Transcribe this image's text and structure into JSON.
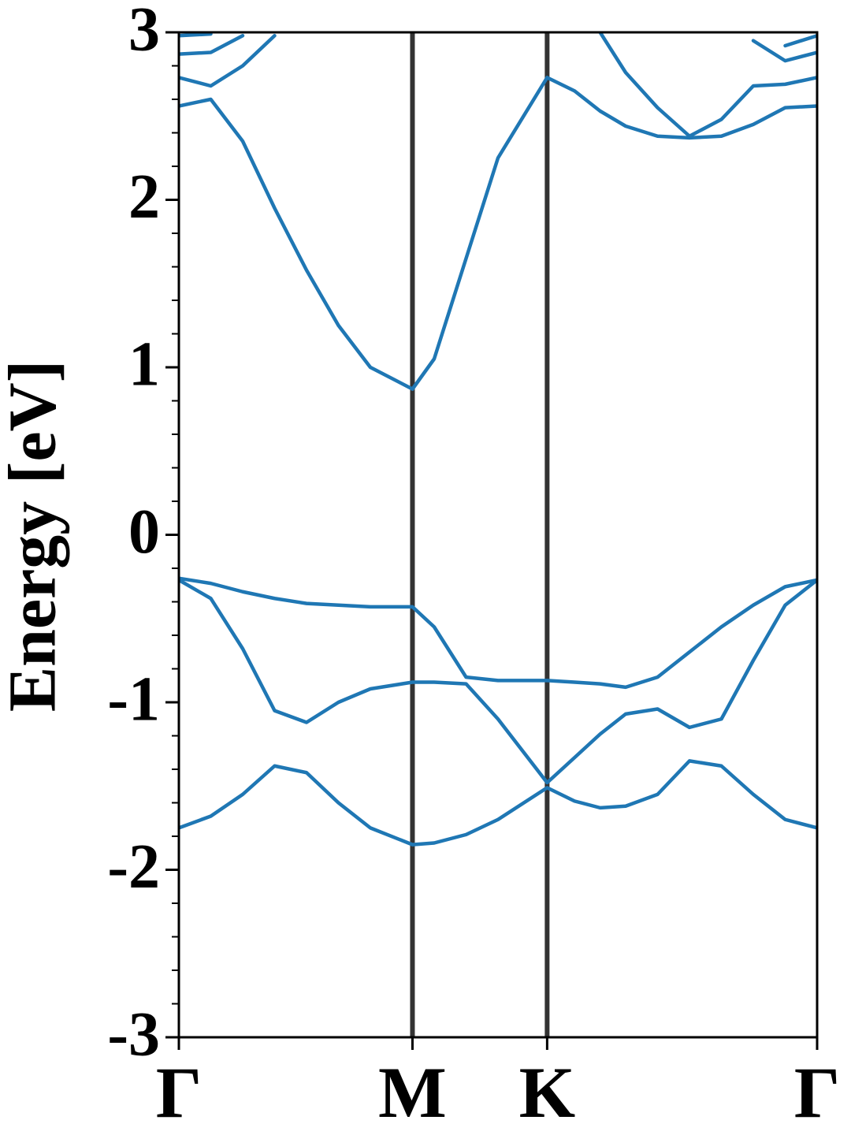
{
  "chart_data": {
    "type": "line",
    "ylabel": "Energy [eV]",
    "xlim": [
      0,
      1
    ],
    "xticks": [
      {
        "value": 0,
        "label": "Γ"
      },
      {
        "value": 0.366,
        "label": "M"
      },
      {
        "value": 0.577,
        "label": "K"
      },
      {
        "value": 1,
        "label": "Γ"
      }
    ],
    "ylim": [
      -3,
      3
    ],
    "yticks": [
      -3,
      -2,
      -1,
      0,
      1,
      2,
      3
    ],
    "yminorticks": [
      -2.8,
      -2.6,
      -2.4,
      -2.2,
      -1.8,
      -1.6,
      -1.4,
      -1.2,
      -0.8,
      -0.6,
      -0.4,
      -0.2,
      0.2,
      0.4,
      0.6,
      0.8,
      1.2,
      1.4,
      1.6,
      1.8,
      2.2,
      2.4,
      2.6,
      2.8
    ],
    "xgrid": true,
    "x": [
      0,
      0.05,
      0.1,
      0.15,
      0.2,
      0.25,
      0.3,
      0.366,
      0.4,
      0.45,
      0.5,
      0.577,
      0.62,
      0.66,
      0.7,
      0.75,
      0.8,
      0.85,
      0.9,
      0.95,
      1
    ],
    "series": [
      {
        "color": "#1f77b4",
        "values": [
          -1.75,
          -1.68,
          -1.55,
          -1.38,
          -1.42,
          -1.6,
          -1.75,
          -1.85,
          -1.84,
          -1.79,
          -1.7,
          -1.51,
          -1.59,
          -1.63,
          -1.62,
          -1.55,
          -1.35,
          -1.38,
          -1.55,
          -1.7,
          -1.75
        ]
      },
      {
        "color": "#1f77b4",
        "values": [
          -0.27,
          -0.38,
          -0.68,
          -1.05,
          -1.12,
          -1.0,
          -0.92,
          -0.88,
          -0.88,
          -0.89,
          -1.1,
          -1.48,
          -1.33,
          -1.19,
          -1.07,
          -1.04,
          -1.15,
          -1.1,
          -0.75,
          -0.42,
          -0.27
        ]
      },
      {
        "color": "#1f77b4",
        "values": [
          -0.26,
          -0.29,
          -0.34,
          -0.38,
          -0.41,
          -0.42,
          -0.43,
          -0.43,
          -0.55,
          -0.85,
          -0.87,
          -0.87,
          -0.88,
          -0.89,
          -0.91,
          -0.85,
          -0.7,
          -0.55,
          -0.42,
          -0.31,
          -0.27
        ]
      },
      {
        "color": "#1f77b4",
        "values": [
          2.56,
          2.6,
          2.35,
          1.95,
          1.58,
          1.25,
          1.0,
          0.87,
          1.05,
          1.65,
          2.25,
          2.73,
          2.65,
          2.53,
          2.44,
          2.38,
          2.37,
          2.38,
          2.45,
          2.55,
          2.56
        ]
      },
      {
        "color": "#1f77b4",
        "values": [
          2.73,
          2.68,
          2.8,
          2.98,
          null,
          null,
          null,
          null,
          null,
          null,
          null,
          null,
          null,
          3.0,
          2.76,
          2.55,
          2.38,
          2.48,
          2.68,
          2.69,
          2.73
        ]
      },
      {
        "color": "#1f77b4",
        "values": [
          2.87,
          2.88,
          2.98,
          null,
          null,
          null,
          null,
          null,
          null,
          null,
          null,
          null,
          null,
          null,
          null,
          null,
          null,
          null,
          2.95,
          2.83,
          2.88
        ]
      },
      {
        "color": "#1f77b4",
        "values": [
          2.98,
          2.99,
          null,
          null,
          null,
          null,
          null,
          null,
          null,
          null,
          null,
          null,
          null,
          null,
          null,
          null,
          null,
          null,
          null,
          2.92,
          2.98
        ]
      }
    ]
  }
}
